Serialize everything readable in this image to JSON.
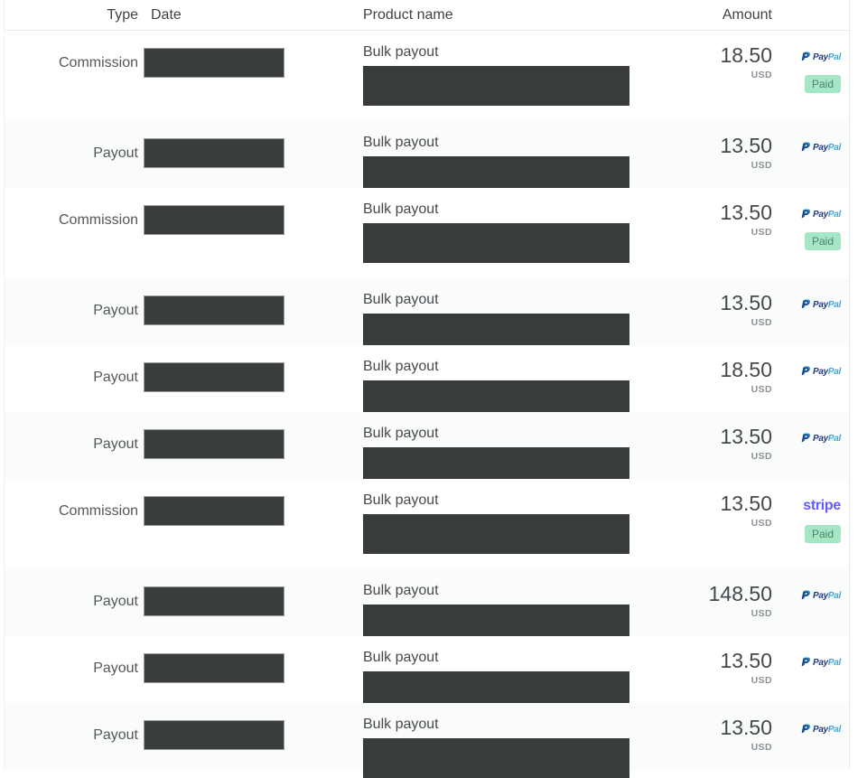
{
  "header": {
    "type": "Type",
    "date": "Date",
    "product": "Product name",
    "amount": "Amount"
  },
  "product_name": "Bulk payout",
  "currency": "USD",
  "badges": {
    "paid": "Paid"
  },
  "logos": {
    "paypal_icon": "P",
    "paypal_pay": "Pay",
    "paypal_pal": "Pal",
    "stripe": "stripe"
  },
  "colors": {
    "paypal_dark": "#253b80",
    "paypal_light": "#169bd7",
    "stripe_purple": "#635bff",
    "paid_badge_bg": "#a5e7c4",
    "paid_badge_text": "#507f6a",
    "redaction_box": "#3a3d3d",
    "alt_row_bg": "#fafbfb"
  },
  "rows": [
    {
      "type": "Commission",
      "amount": "18.50",
      "gateway": "paypal",
      "paid": true
    },
    {
      "type": "Payout",
      "amount": "13.50",
      "gateway": "paypal",
      "paid": false
    },
    {
      "type": "Commission",
      "amount": "13.50",
      "gateway": "paypal",
      "paid": true
    },
    {
      "type": "Payout",
      "amount": "13.50",
      "gateway": "paypal",
      "paid": false
    },
    {
      "type": "Payout",
      "amount": "18.50",
      "gateway": "paypal",
      "paid": false
    },
    {
      "type": "Payout",
      "amount": "13.50",
      "gateway": "paypal",
      "paid": false
    },
    {
      "type": "Commission",
      "amount": "13.50",
      "gateway": "stripe",
      "paid": true
    },
    {
      "type": "Payout",
      "amount": "148.50",
      "gateway": "paypal",
      "paid": false
    },
    {
      "type": "Payout",
      "amount": "13.50",
      "gateway": "paypal",
      "paid": false
    },
    {
      "type": "Payout",
      "amount": "13.50",
      "gateway": "paypal",
      "paid": false
    }
  ]
}
